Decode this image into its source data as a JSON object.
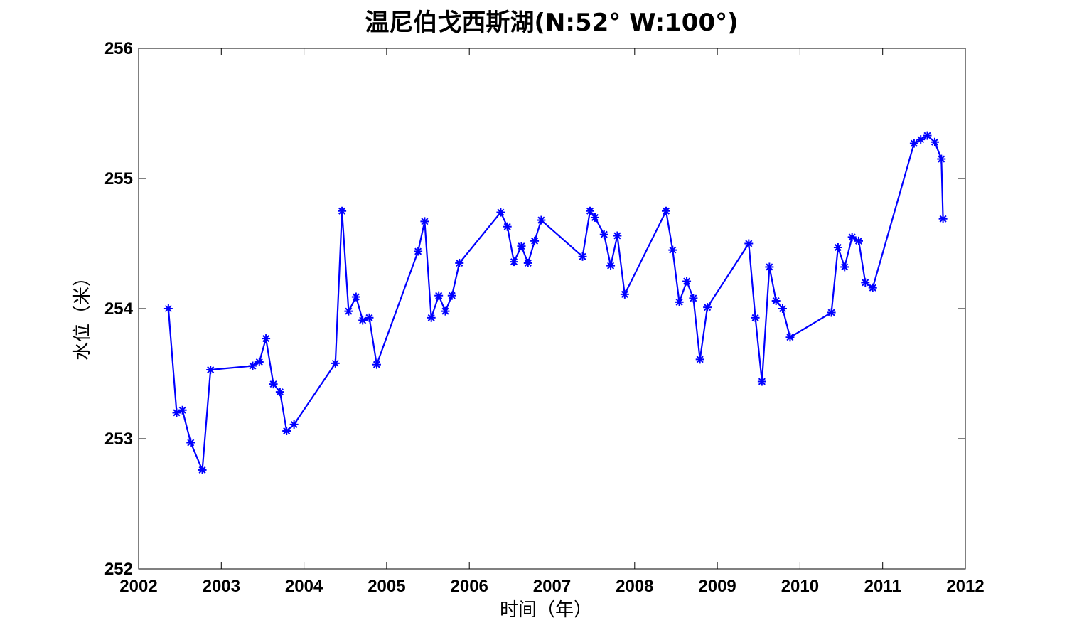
{
  "chart_data": {
    "type": "line",
    "title": "温尼伯戈西斯湖(N:52° W:100°)",
    "xlabel": "时间（年）",
    "ylabel": "水位（米）",
    "xlim": [
      2002,
      2012
    ],
    "ylim": [
      252,
      256
    ],
    "xticks": [
      "2002",
      "2003",
      "2004",
      "2005",
      "2006",
      "2007",
      "2008",
      "2009",
      "2010",
      "2011",
      "2012"
    ],
    "yticks": [
      "252",
      "253",
      "254",
      "255",
      "256"
    ],
    "grid": false,
    "legend": "none",
    "series": [
      {
        "color": "#0000ff",
        "marker": "asterisk",
        "x": [
          2002.36,
          2002.46,
          2002.53,
          2002.63,
          2002.77,
          2002.87,
          2003.38,
          2003.46,
          2003.54,
          2003.63,
          2003.71,
          2003.79,
          2003.88,
          2004.38,
          2004.46,
          2004.54,
          2004.63,
          2004.71,
          2004.79,
          2004.88,
          2005.38,
          2005.46,
          2005.54,
          2005.63,
          2005.71,
          2005.79,
          2005.88,
          2006.38,
          2006.46,
          2006.54,
          2006.63,
          2006.71,
          2006.79,
          2006.87,
          2007.37,
          2007.46,
          2007.52,
          2007.63,
          2007.71,
          2007.79,
          2007.88,
          2008.38,
          2008.46,
          2008.54,
          2008.63,
          2008.71,
          2008.79,
          2008.88,
          2009.38,
          2009.46,
          2009.54,
          2009.63,
          2009.71,
          2009.79,
          2009.88,
          2010.38,
          2010.46,
          2010.54,
          2010.63,
          2010.71,
          2010.79,
          2010.88,
          2011.38,
          2011.46,
          2011.54,
          2011.63,
          2011.71,
          2011.73
        ],
        "y": [
          254.0,
          253.2,
          253.22,
          252.97,
          252.76,
          253.53,
          253.56,
          253.59,
          253.77,
          253.42,
          253.36,
          253.06,
          253.11,
          253.58,
          254.75,
          253.98,
          254.09,
          253.91,
          253.93,
          253.57,
          254.44,
          254.67,
          253.93,
          254.1,
          253.98,
          254.1,
          254.35,
          254.74,
          254.63,
          254.36,
          254.48,
          254.35,
          254.52,
          254.68,
          254.4,
          254.75,
          254.7,
          254.57,
          254.33,
          254.56,
          254.11,
          254.75,
          254.45,
          254.05,
          254.21,
          254.08,
          253.61,
          254.01,
          254.5,
          253.93,
          253.44,
          254.32,
          254.06,
          254.0,
          253.78,
          253.97,
          254.47,
          254.32,
          254.55,
          254.52,
          254.2,
          254.16,
          255.27,
          255.3,
          255.33,
          255.28,
          255.15,
          254.69
        ]
      }
    ]
  }
}
